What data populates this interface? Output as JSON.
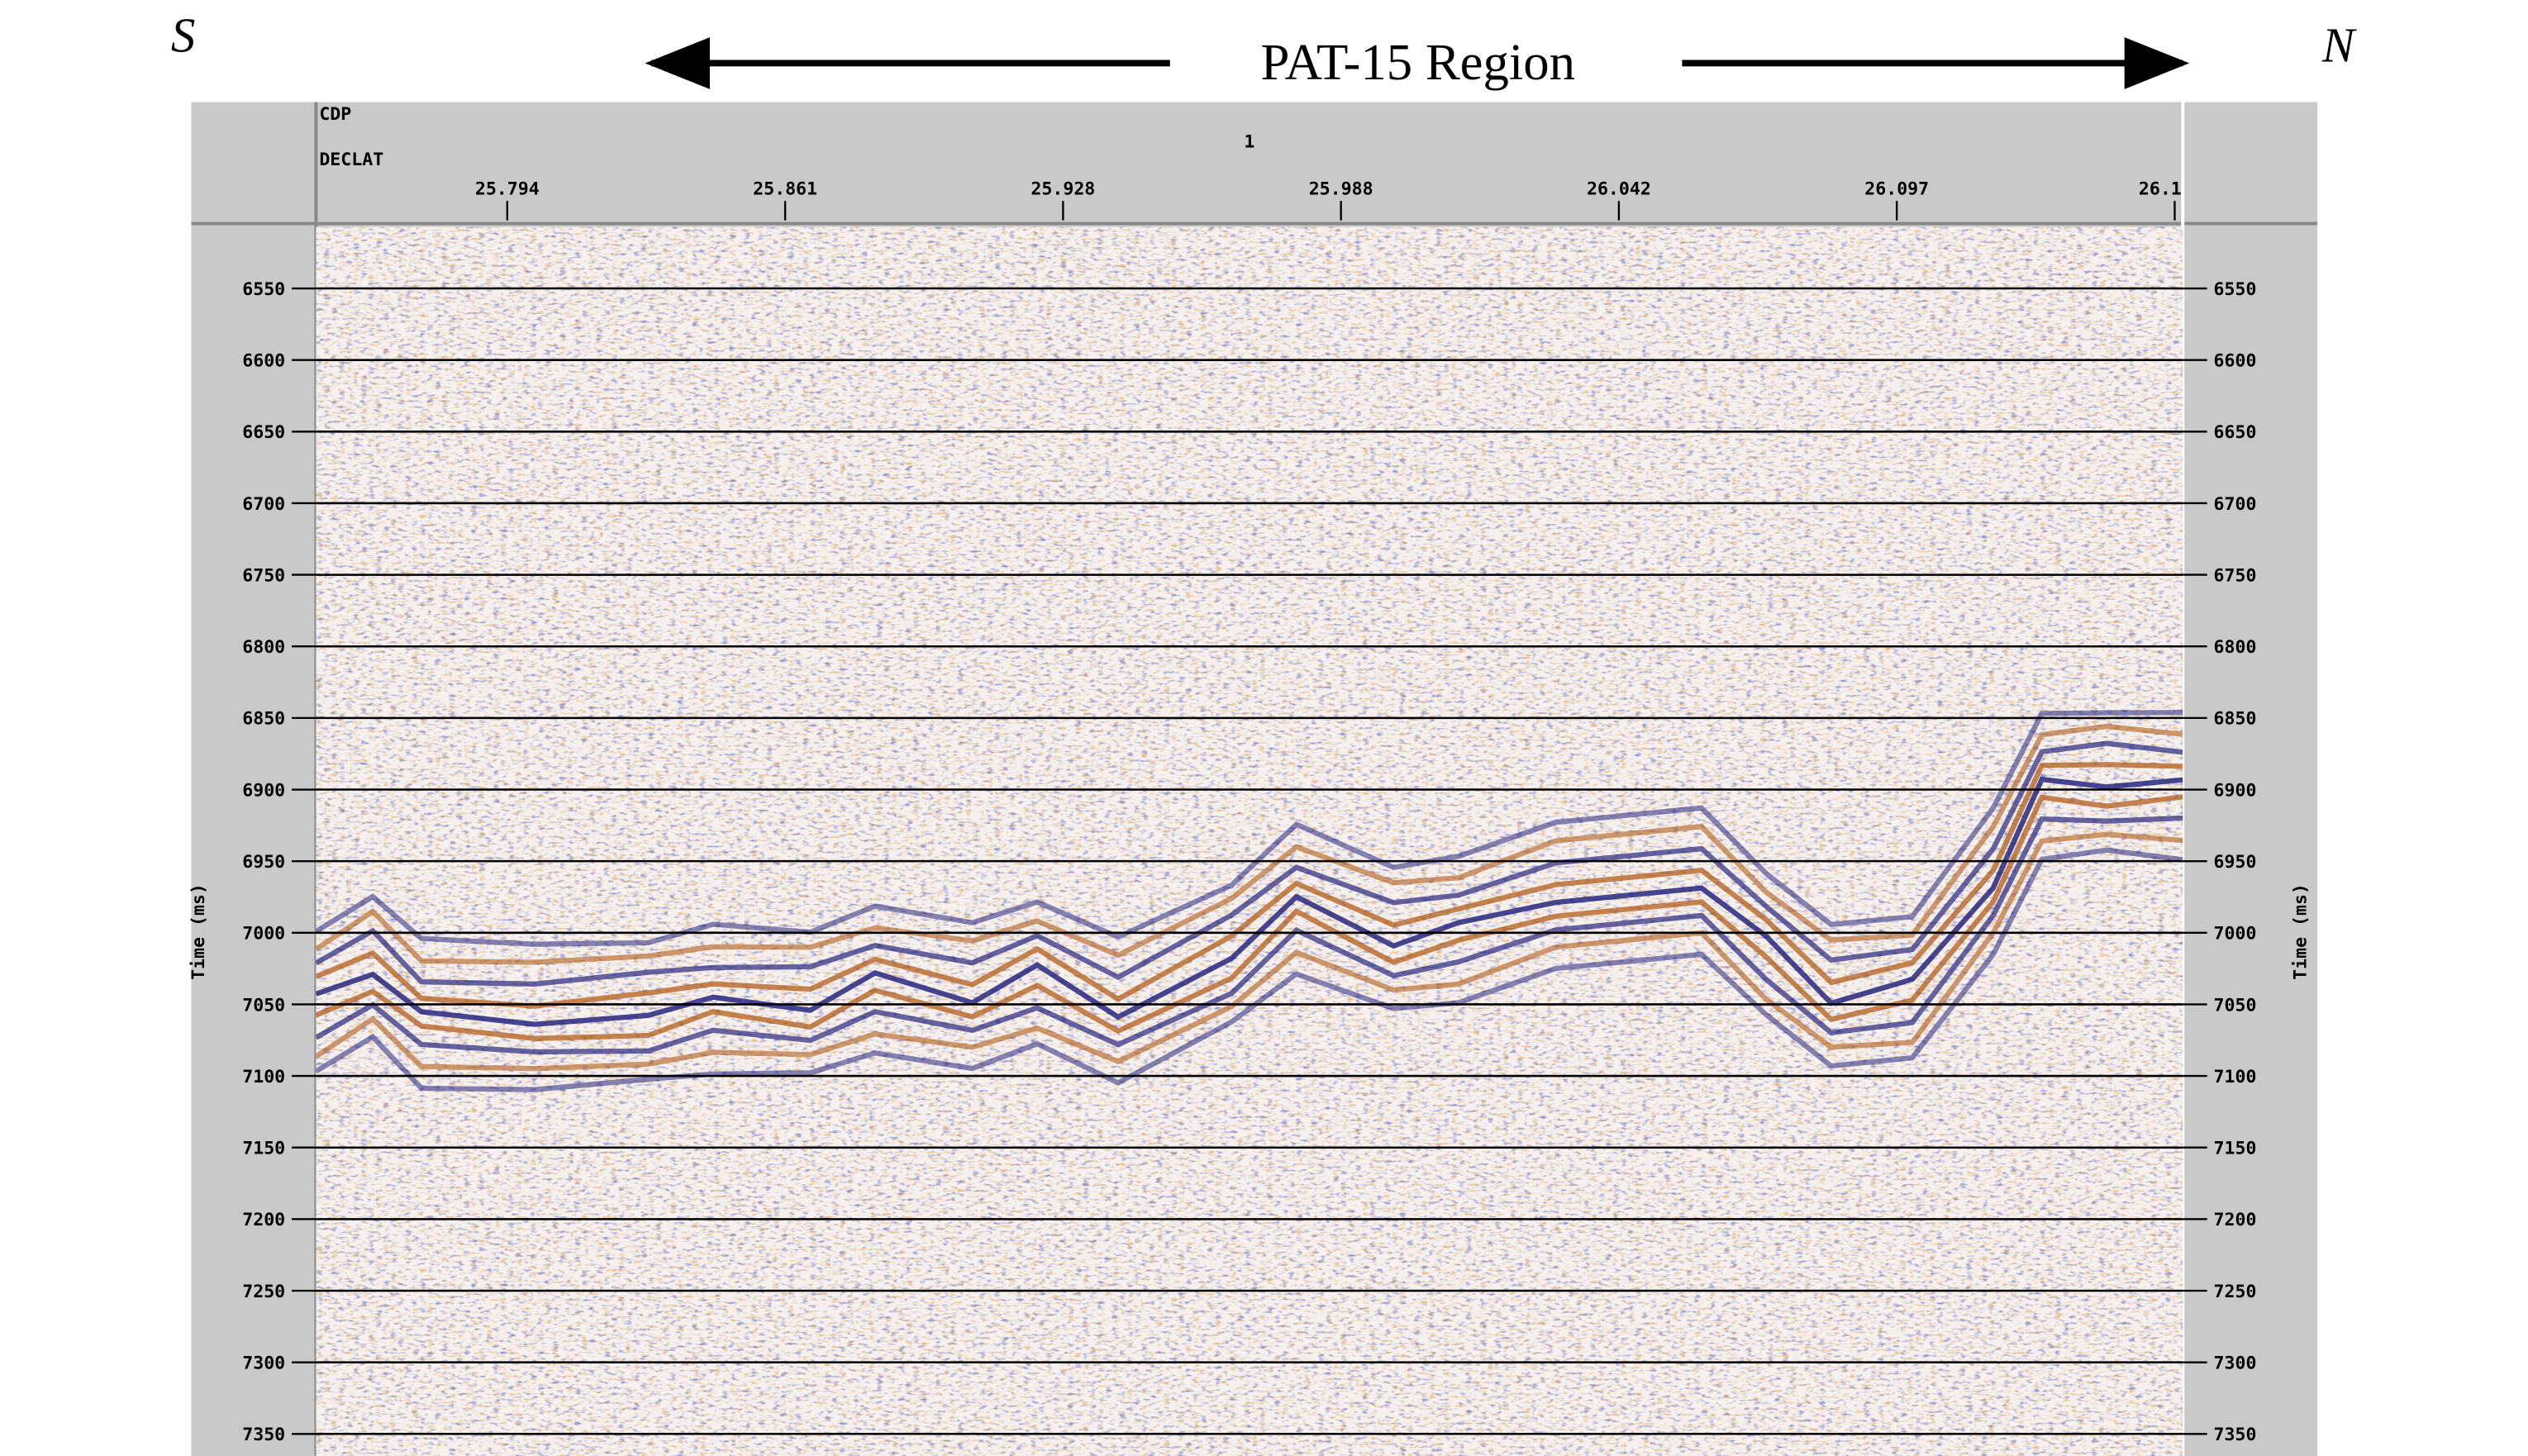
{
  "labels": {
    "left": "S",
    "right": "N",
    "region": "PAT-15  Region"
  },
  "chart_data": {
    "type": "seismic",
    "header_labels": [
      "CDP",
      "DECLAT"
    ],
    "cdp": "1",
    "x_tick_labels": [
      "25.794",
      "25.861",
      "25.928",
      "25.988",
      "26.042",
      "26.097",
      "26.1"
    ],
    "ylabel": "Time (ms)",
    "ylim": [
      6507,
      7367
    ],
    "yticks": [
      6550,
      6600,
      6650,
      6700,
      6750,
      6800,
      6850,
      6900,
      6950,
      7000,
      7050,
      7100,
      7150,
      7200,
      7250,
      7300,
      7350
    ],
    "grid": true
  }
}
